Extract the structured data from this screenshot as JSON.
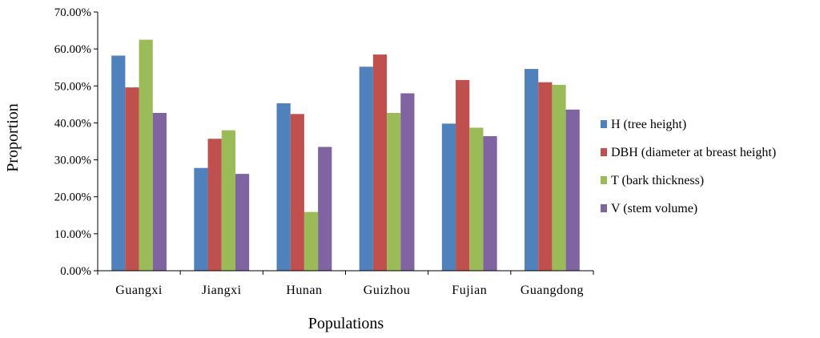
{
  "chart_data": {
    "type": "bar",
    "title": "",
    "xlabel": "Populations",
    "ylabel": "Proportion",
    "categories": [
      "Guangxi",
      "Jiangxi",
      "Hunan",
      "Guizhou",
      "Fujian",
      "Guangdong"
    ],
    "ylim": [
      0,
      70
    ],
    "yticks": [
      0,
      10,
      20,
      30,
      40,
      50,
      60,
      70
    ],
    "ytick_labels": [
      "0.00%",
      "10.00%",
      "20.00%",
      "30.00%",
      "40.00%",
      "50.00%",
      "60.00%",
      "70.00%"
    ],
    "grid": false,
    "legend_position": "right",
    "series": [
      {
        "name": "H  (tree height)",
        "color": "#4F81BD",
        "values": [
          58.2,
          27.8,
          45.3,
          55.2,
          39.8,
          54.6
        ]
      },
      {
        "name": "DBH (diameter at breast height)",
        "color": "#C0504D",
        "values": [
          49.6,
          35.7,
          42.4,
          58.5,
          51.6,
          51.0
        ]
      },
      {
        "name": "T   (bark thickness)",
        "color": "#9BBB59",
        "values": [
          62.5,
          38.0,
          15.9,
          42.7,
          38.7,
          50.3
        ]
      },
      {
        "name": "V   (stem volume)",
        "color": "#8064A2",
        "values": [
          42.7,
          26.2,
          33.5,
          48.0,
          36.4,
          43.6
        ]
      }
    ]
  }
}
